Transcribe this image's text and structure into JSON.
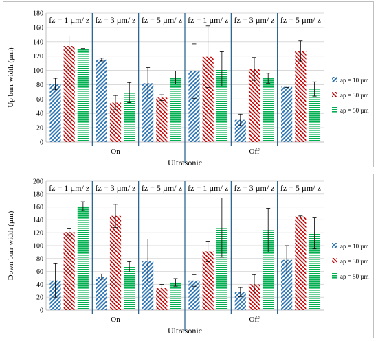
{
  "colors": {
    "ap10": "#2e75b6",
    "ap30": "#c00000",
    "ap50": "#00b050",
    "separator": "#1f5c8a",
    "grid": "#d9d9d9"
  },
  "chart_data": [
    {
      "type": "bar",
      "ylabel": "Up burr width (µm)",
      "xlabel": "Ultrasonic",
      "ylim": [
        0,
        180
      ],
      "yticks": [
        0,
        20,
        40,
        60,
        80,
        100,
        120,
        140,
        160,
        180
      ],
      "groups": [
        "On",
        "Off"
      ],
      "subgroups": [
        "fz = 1 µm/ z",
        "fz = 3 µm/ z",
        "fz = 5 µm/ z",
        "fz = 1 µm/ z",
        "fz = 3 µm/ z",
        "fz = 5 µm/ z"
      ],
      "legend_position": "right",
      "grid": true,
      "series": [
        {
          "name": "ap = 10 µm",
          "values": [
            81,
            115,
            82,
            99,
            31,
            77
          ],
          "errors": [
            8,
            2,
            22,
            38,
            8,
            1
          ]
        },
        {
          "name": "ap = 30 µm",
          "values": [
            134,
            55,
            62,
            119,
            102,
            127
          ],
          "errors": [
            14,
            10,
            4,
            43,
            16,
            14
          ]
        },
        {
          "name": "ap = 50 µm",
          "values": [
            130,
            69,
            90,
            102,
            89,
            74
          ],
          "errors": [
            0.5,
            14,
            9,
            24,
            7,
            10
          ]
        }
      ]
    },
    {
      "type": "bar",
      "ylabel": "Down burr width (µm)",
      "xlabel": "Ultrasonic",
      "ylim": [
        0,
        200
      ],
      "yticks": [
        0,
        20,
        40,
        60,
        80,
        100,
        120,
        140,
        160,
        180,
        200
      ],
      "groups": [
        "On",
        "Off"
      ],
      "subgroups": [
        "fz = 1 µm/ z",
        "fz = 3 µm/ z",
        "fz = 5 µm/ z",
        "fz = 1 µm/ z",
        "fz = 3 µm/ z",
        "fz = 5 µm/ z"
      ],
      "legend_position": "right",
      "grid": true,
      "series": [
        {
          "name": "ap = 10 µm",
          "values": [
            46,
            52,
            76,
            46,
            28,
            78
          ],
          "errors": [
            26,
            4,
            34,
            9,
            7,
            22
          ]
        },
        {
          "name": "ap = 30 µm",
          "values": [
            121,
            146,
            34,
            91,
            40,
            145
          ],
          "errors": [
            5,
            18,
            6,
            16,
            15,
            1
          ]
        },
        {
          "name": "ap = 50 µm",
          "values": [
            161,
            67,
            43,
            128,
            124,
            119
          ],
          "errors": [
            7,
            8,
            6,
            46,
            34,
            24
          ]
        }
      ]
    }
  ]
}
